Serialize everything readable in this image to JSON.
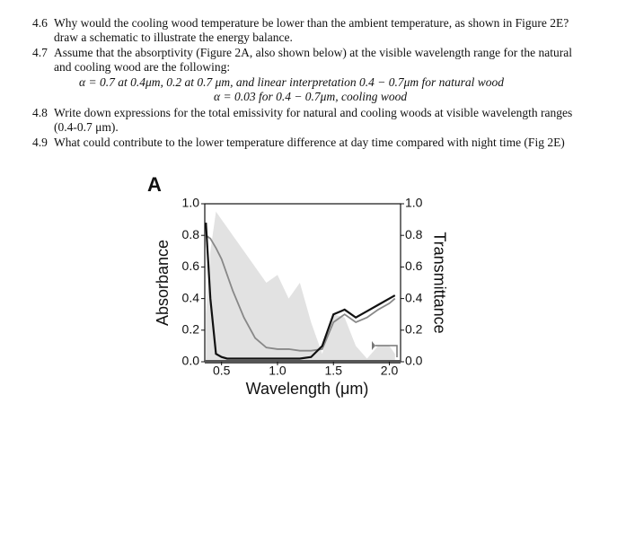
{
  "questions": [
    {
      "number": "4.6",
      "text": "Why would the cooling wood temperature be lower than the ambient temperature, as shown in Figure 2E? draw a schematic to illustrate the energy balance."
    },
    {
      "number": "4.7",
      "text": "Assume that the absorptivity (Figure 2A, also shown below) at the visible wavelength range for the natural and cooling wood are the following:",
      "equations": [
        "α = 0.7 at 0.4μm, 0.2 at 0.7 μm, and linear interpretation 0.4 − 0.7μm for natural wood",
        "α = 0.03 for 0.4 − 0.7μm, cooling wood"
      ]
    },
    {
      "number": "4.8",
      "text": "Write down expressions for the total emissivity for natural and cooling woods at visible wavelength ranges (0.4-0.7 μm)."
    },
    {
      "number": "4.9",
      "text": "What could contribute to the lower temperature difference at day time compared with night time (Fig 2E)"
    }
  ],
  "chart_data": {
    "type": "line",
    "panel_label": "A",
    "x_label": "Wavelength (μm)",
    "y_label": "Absorbance",
    "y2_label": "Transmittance",
    "x": [
      0.36,
      0.4,
      0.45,
      0.5,
      0.55,
      0.6,
      0.7,
      0.8,
      0.9,
      1.0,
      1.1,
      1.2,
      1.3,
      1.4,
      1.5,
      1.6,
      1.7,
      1.8,
      1.9,
      2.0,
      2.05
    ],
    "spectrum": {
      "color": "#e2e2e2",
      "values": [
        0.3,
        0.7,
        0.95,
        0.9,
        0.85,
        0.8,
        0.7,
        0.6,
        0.5,
        0.55,
        0.4,
        0.5,
        0.25,
        0.05,
        0.3,
        0.28,
        0.1,
        0.02,
        0.1,
        0.1,
        0.05
      ]
    },
    "series": [
      {
        "color": "#111111",
        "values": [
          0.88,
          0.4,
          0.05,
          0.03,
          0.02,
          0.02,
          0.02,
          0.02,
          0.02,
          0.02,
          0.02,
          0.02,
          0.03,
          0.1,
          0.3,
          0.33,
          0.28,
          0.32,
          0.36,
          0.4,
          0.42
        ]
      },
      {
        "color": "#888888",
        "values": [
          0.8,
          0.78,
          0.72,
          0.65,
          0.55,
          0.45,
          0.28,
          0.15,
          0.09,
          0.08,
          0.08,
          0.07,
          0.07,
          0.08,
          0.25,
          0.3,
          0.25,
          0.28,
          0.33,
          0.37,
          0.4
        ]
      }
    ],
    "xlim": [
      0.35,
      2.1
    ],
    "xticks": [
      0.5,
      {
        "value": 1,
        "label": "1.0"
      },
      1.5,
      {
        "value": 2,
        "label": "2.0"
      }
    ],
    "ylim": [
      0,
      1
    ],
    "yticks": [
      {
        "value": 0,
        "label": "0.0"
      },
      0.2,
      0.4,
      0.6,
      0.8,
      {
        "value": 1,
        "label": "1.0"
      }
    ],
    "y2lim": [
      0,
      1
    ],
    "y2ticks": [
      {
        "value": 0,
        "label": "0.0"
      },
      0.2,
      0.4,
      0.6,
      0.8,
      {
        "value": 1,
        "label": "1.0"
      }
    ]
  }
}
